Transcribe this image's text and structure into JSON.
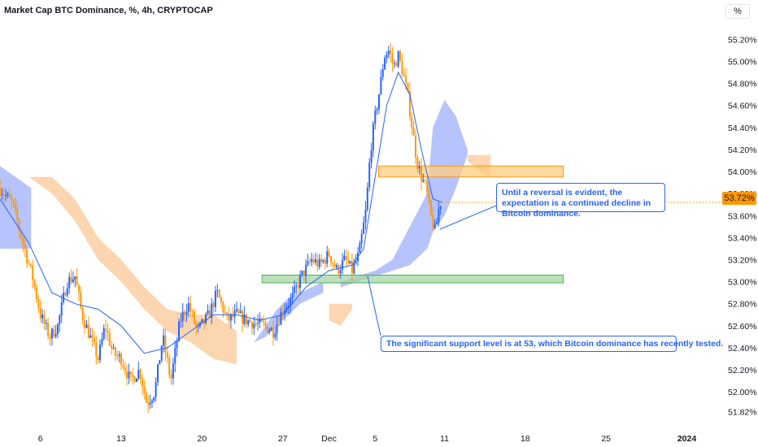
{
  "header": {
    "title": "Market Cap BTC Dominance, %, 4h, CRYPTOCAP",
    "unit_button": "%"
  },
  "price_tag": "53.72%",
  "colors": {
    "up_candle": "#2962ff",
    "down_candle": "#ff9800",
    "moving_average": "#2962ff",
    "cloud_bullish": "#aebcfd",
    "cloud_bearish": "#fcd2a7",
    "resistance_zone": "#ffcc80",
    "support_zone": "#a5d6a7",
    "axis_text": "#131722"
  },
  "annotations": {
    "resistance_note": "Until a reversal is evident, the expectation is a continued decline in Bitcoin dominance.",
    "support_note": "The significant support level is at 53, which Bitcoin dominance has recently tested."
  },
  "chart_data": {
    "type": "candlestick",
    "title": "Market Cap BTC Dominance, %, 4h, CRYPTOCAP",
    "ylim": [
      51.78,
      55.35
    ],
    "y_ticks": [
      "55.20%",
      "55.00%",
      "54.80%",
      "54.60%",
      "54.40%",
      "54.20%",
      "54.00%",
      "53.80%",
      "53.60%",
      "53.40%",
      "53.20%",
      "53.00%",
      "52.80%",
      "52.60%",
      "52.40%",
      "52.20%",
      "52.00%",
      "51.82%"
    ],
    "y_tick_values": [
      55.2,
      55.0,
      54.8,
      54.6,
      54.4,
      54.2,
      54.0,
      53.8,
      53.6,
      53.4,
      53.2,
      53.0,
      52.8,
      52.6,
      52.4,
      52.2,
      52.0,
      51.82
    ],
    "x_ticks": [
      "6",
      "13",
      "20",
      "27",
      "Dec",
      "5",
      "11",
      "18",
      "25",
      "2024"
    ],
    "x_tick_days": [
      6,
      13,
      20,
      27,
      31,
      35,
      41,
      48,
      55,
      62
    ],
    "x_domain_days": [
      2.5,
      64.5
    ],
    "last_price": 53.72,
    "zones": [
      {
        "name": "resistance",
        "y_low": 53.95,
        "y_high": 54.05,
        "x_start_day": 35.3,
        "x_end_day": 51.3
      },
      {
        "name": "support",
        "y_low": 52.99,
        "y_high": 53.06,
        "x_start_day": 25.2,
        "x_end_day": 51.3
      }
    ],
    "candle_points": [
      [
        2.5,
        53.85
      ],
      [
        3.6,
        53.7
      ],
      [
        4.5,
        53.35
      ],
      [
        5.3,
        53.05
      ],
      [
        6.0,
        52.7
      ],
      [
        6.8,
        52.5
      ],
      [
        7.5,
        52.6
      ],
      [
        8.3,
        53.0
      ],
      [
        9.0,
        53.05
      ],
      [
        9.6,
        52.7
      ],
      [
        10.3,
        52.5
      ],
      [
        11.0,
        52.3
      ],
      [
        11.6,
        52.6
      ],
      [
        12.3,
        52.35
      ],
      [
        13.0,
        52.3
      ],
      [
        13.8,
        52.1
      ],
      [
        14.6,
        52.2
      ],
      [
        15.2,
        51.9
      ],
      [
        15.9,
        52.0
      ],
      [
        16.6,
        52.5
      ],
      [
        17.3,
        52.1
      ],
      [
        18.1,
        52.65
      ],
      [
        18.8,
        52.8
      ],
      [
        19.6,
        52.55
      ],
      [
        20.6,
        52.7
      ],
      [
        21.3,
        52.9
      ],
      [
        22.2,
        52.65
      ],
      [
        23.0,
        52.7
      ],
      [
        23.8,
        52.65
      ],
      [
        24.6,
        52.62
      ],
      [
        25.4,
        52.6
      ],
      [
        26.2,
        52.55
      ],
      [
        27.0,
        52.75
      ],
      [
        27.8,
        52.85
      ],
      [
        28.6,
        53.05
      ],
      [
        29.5,
        53.2
      ],
      [
        30.2,
        53.15
      ],
      [
        31.0,
        53.25
      ],
      [
        31.7,
        53.1
      ],
      [
        32.4,
        53.2
      ],
      [
        33.0,
        53.1
      ],
      [
        33.6,
        53.25
      ],
      [
        34.2,
        53.65
      ],
      [
        34.6,
        54.2
      ],
      [
        35.0,
        54.5
      ],
      [
        35.4,
        54.75
      ],
      [
        35.8,
        55.05
      ],
      [
        36.2,
        55.1
      ],
      [
        36.6,
        54.95
      ],
      [
        37.0,
        55.05
      ],
      [
        37.4,
        54.9
      ],
      [
        37.8,
        54.7
      ],
      [
        38.2,
        54.4
      ],
      [
        38.6,
        54.1
      ],
      [
        39.0,
        53.95
      ],
      [
        39.4,
        53.85
      ],
      [
        39.8,
        53.6
      ],
      [
        40.2,
        53.45
      ],
      [
        40.6,
        53.72
      ],
      [
        40.8,
        53.72
      ]
    ],
    "moving_average": [
      [
        2.5,
        53.75
      ],
      [
        5.0,
        53.35
      ],
      [
        7.0,
        52.9
      ],
      [
        9.0,
        52.8
      ],
      [
        11.0,
        52.75
      ],
      [
        13.0,
        52.6
      ],
      [
        15.0,
        52.35
      ],
      [
        17.0,
        52.4
      ],
      [
        19.0,
        52.55
      ],
      [
        21.0,
        52.7
      ],
      [
        23.0,
        52.7
      ],
      [
        25.0,
        52.65
      ],
      [
        27.0,
        52.7
      ],
      [
        29.0,
        52.95
      ],
      [
        31.0,
        53.1
      ],
      [
        33.0,
        53.15
      ],
      [
        34.0,
        53.3
      ],
      [
        35.0,
        53.95
      ],
      [
        36.0,
        54.6
      ],
      [
        37.0,
        54.9
      ],
      [
        38.0,
        54.7
      ],
      [
        39.0,
        54.2
      ],
      [
        40.0,
        53.75
      ],
      [
        40.8,
        53.72
      ]
    ],
    "cloud_bullish": [
      {
        "x": [
          2.5,
          5.2
        ],
        "top": [
          54.05,
          53.85
        ],
        "bottom": [
          53.3,
          53.3
        ]
      },
      {
        "x": [
          24.5,
          25.5,
          26.5,
          27.5,
          28.5,
          29.5,
          30.5
        ],
        "top": [
          52.45,
          52.6,
          52.75,
          52.85,
          52.9,
          52.95,
          53.0
        ],
        "bottom": [
          52.45,
          52.5,
          52.6,
          52.7,
          52.8,
          52.85,
          52.9
        ]
      },
      {
        "x": [
          32.0,
          33.5,
          35.0,
          36.5,
          38.0,
          39.5,
          40.0,
          41.0,
          42.0,
          43.0
        ],
        "top": [
          53.0,
          53.05,
          53.1,
          53.2,
          53.5,
          53.8,
          54.4,
          54.65,
          54.5,
          54.2
        ],
        "bottom": [
          52.95,
          53.0,
          53.05,
          53.1,
          53.15,
          53.3,
          53.45,
          53.6,
          53.85,
          54.15
        ]
      }
    ],
    "cloud_bearish": [
      {
        "x": [
          5.0,
          7.0,
          9.0,
          11.0,
          13.0,
          15.0,
          17.0,
          19.0,
          21.0,
          23.0
        ],
        "top": [
          53.95,
          53.95,
          53.75,
          53.4,
          53.2,
          52.95,
          52.75,
          52.7,
          52.7,
          52.55
        ],
        "bottom": [
          53.95,
          53.8,
          53.55,
          53.2,
          53.0,
          52.75,
          52.55,
          52.45,
          52.3,
          52.25
        ]
      },
      {
        "x": [
          31.0,
          32.0,
          33.0
        ],
        "top": [
          52.8,
          52.8,
          52.8
        ],
        "bottom": [
          52.65,
          52.6,
          52.75
        ]
      },
      {
        "x": [
          43.0,
          44.0,
          45.0
        ],
        "top": [
          54.15,
          54.15,
          54.15
        ],
        "bottom": [
          54.1,
          54.0,
          53.95
        ]
      }
    ]
  }
}
